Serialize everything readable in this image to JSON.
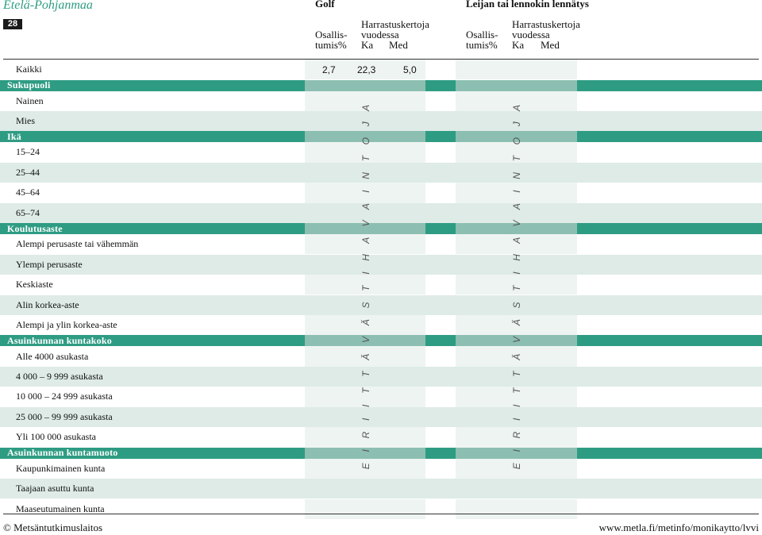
{
  "header": {
    "region": "Etelä-Pohjanmaa",
    "page_number": "28",
    "groups": [
      {
        "name": "Golf",
        "participation": "Osallis-\ntumis%",
        "frequency": "Harrastuskertoja\nvuodessa",
        "mean": "Ka",
        "median": "Med"
      },
      {
        "name": "Leijan tai lennokin lennätys",
        "participation": "Osallis-\ntumis%",
        "frequency": "Harrastuskertoja\nvuodessa",
        "mean": "Ka",
        "median": "Med"
      }
    ]
  },
  "rows": [
    {
      "kind": "row",
      "label": "Kaikki",
      "values": [
        "2,7",
        "22,3",
        "5,0"
      ]
    },
    {
      "kind": "section",
      "label": "Sukupuoli"
    },
    {
      "kind": "row",
      "label": "Nainen"
    },
    {
      "kind": "row",
      "label": "Mies"
    },
    {
      "kind": "section",
      "label": "Ikä"
    },
    {
      "kind": "row",
      "label": "15–24"
    },
    {
      "kind": "row",
      "label": "25–44"
    },
    {
      "kind": "row",
      "label": "45–64"
    },
    {
      "kind": "row",
      "label": "65–74"
    },
    {
      "kind": "section",
      "label": "Koulutusaste"
    },
    {
      "kind": "row",
      "label": "Alempi perusaste tai vähemmän"
    },
    {
      "kind": "row",
      "label": "Ylempi perusaste"
    },
    {
      "kind": "row",
      "label": "Keskiaste"
    },
    {
      "kind": "row",
      "label": "Alin korkea-aste"
    },
    {
      "kind": "row",
      "label": "Alempi ja ylin korkea-aste"
    },
    {
      "kind": "section",
      "label": "Asuinkunnan kuntakoko"
    },
    {
      "kind": "row",
      "label": "Alle 4000 asukasta"
    },
    {
      "kind": "row",
      "label": "4 000 – 9 999 asukasta"
    },
    {
      "kind": "row",
      "label": "10 000 – 24 999 asukasta"
    },
    {
      "kind": "row",
      "label": "25 000 – 99 999 asukasta"
    },
    {
      "kind": "row",
      "label": "Yli 100 000 asukasta"
    },
    {
      "kind": "section",
      "label": "Asuinkunnan kuntamuoto"
    },
    {
      "kind": "row",
      "label": "Kaupunkimainen kunta"
    },
    {
      "kind": "row",
      "label": "Taajaan asuttu kunta"
    },
    {
      "kind": "row",
      "label": "Maaseutumainen kunta"
    }
  ],
  "notes": {
    "golf": "E I   R I I T T Ä V Ä S T I   H A V A I N T O J A",
    "leija": "E I   R I I T T Ä V Ä S T I   H A V A I N T O J A"
  },
  "footer": {
    "copyright": "© Metsäntutkimuslaitos",
    "url": "www.metla.fi/metinfo/monikaytto/lvvi"
  },
  "colors": {
    "section_bar": "#2e9c83",
    "section_bar_light": "#8cbfb1",
    "row_band": "#deebe7",
    "column_light": "#eef4f2",
    "column_faint": "#f6f9f8",
    "region_title": "#2e9c83"
  }
}
